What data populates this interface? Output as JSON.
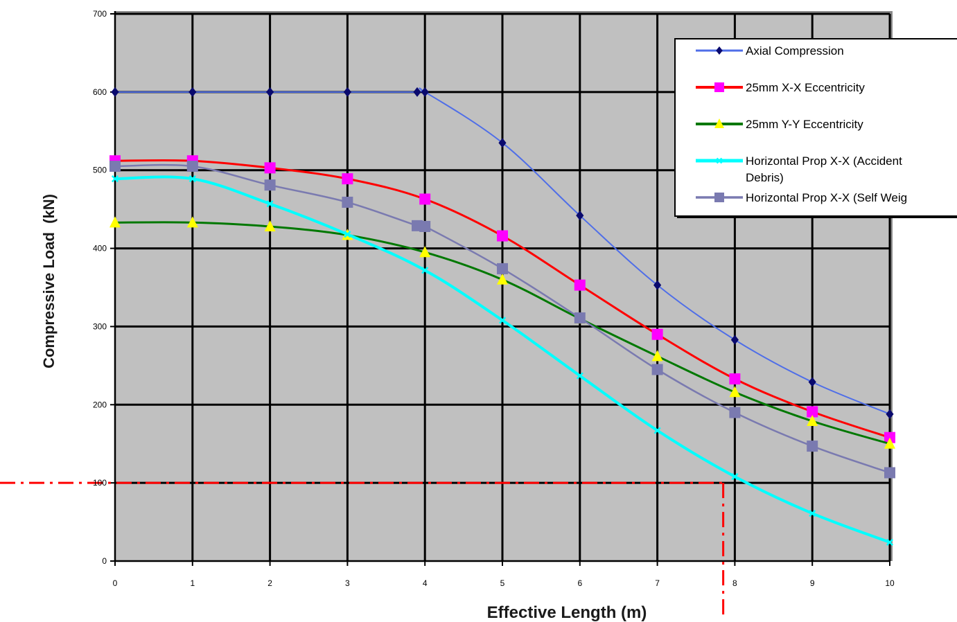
{
  "chart_data": {
    "type": "line",
    "title": "",
    "xlabel": "Effective Length (m)",
    "ylabel": "Compressive Load  (kN)",
    "xlim": [
      0,
      10
    ],
    "ylim": [
      0,
      700
    ],
    "x_ticks": [
      0,
      1,
      2,
      3,
      4,
      5,
      6,
      7,
      8,
      9,
      10
    ],
    "y_ticks": [
      0,
      100,
      200,
      300,
      400,
      500,
      600,
      700
    ],
    "grid": true,
    "plot_background": "#c0c0c0",
    "legend_position": "top-right",
    "series": [
      {
        "name": "Axial Compression",
        "color": "#4f6ee8",
        "marker": "diamond",
        "marker_color": "#0a0a6e",
        "x": [
          0,
          1,
          2,
          3,
          3.9,
          4,
          5,
          6,
          7,
          8,
          9,
          10
        ],
        "y": [
          600,
          600,
          600,
          600,
          600,
          600,
          535,
          442,
          353,
          283,
          229,
          188
        ]
      },
      {
        "name": "25mm X-X Eccentricity",
        "color": "#ff0000",
        "marker": "square",
        "marker_color": "#ff00ff",
        "x": [
          0,
          1,
          2,
          3,
          4,
          5,
          6,
          7,
          8,
          9,
          10
        ],
        "y": [
          512,
          512,
          503,
          489,
          463,
          416,
          353,
          290,
          233,
          191,
          158
        ]
      },
      {
        "name": "25mm Y-Y Eccentricity",
        "color": "#007800",
        "marker": "triangle",
        "marker_color": "#ffff00",
        "x": [
          0,
          1,
          2,
          3,
          4,
          5,
          6,
          7,
          8,
          9,
          10
        ],
        "y": [
          433,
          433,
          428,
          417,
          395,
          360,
          310,
          262,
          216,
          179,
          150
        ]
      },
      {
        "name": "Horizontal Prop X-X (Accidental Debris)",
        "color": "#00ffff",
        "marker": "x",
        "marker_color": "#00ffff",
        "x": [
          0,
          1,
          2,
          3,
          4,
          5,
          6,
          7,
          8,
          9,
          10
        ],
        "y": [
          489,
          489,
          457,
          418,
          372,
          308,
          237,
          167,
          108,
          61,
          24
        ]
      },
      {
        "name": "Horizontal Prop X-X (Self Weight)",
        "color": "#7a7ab0",
        "marker": "square",
        "marker_color": "#7a7ab0",
        "x": [
          0,
          1,
          2,
          3,
          3.9,
          4,
          5,
          6,
          7,
          8,
          9,
          10
        ],
        "y": [
          505,
          505,
          481,
          459,
          429,
          428,
          374,
          311,
          245,
          190,
          147,
          113
        ]
      }
    ],
    "legend_entries": [
      {
        "lines": [
          "Axial Compression"
        ]
      },
      {
        "lines": [
          "25mm X-X Eccentricity"
        ]
      },
      {
        "lines": [
          "25mm Y-Y Eccentricity"
        ]
      },
      {
        "lines": [
          "Horizontal Prop X-X (Accident",
          "Debris)"
        ]
      },
      {
        "lines": [
          "Horizontal Prop X-X (Self Weig"
        ]
      }
    ],
    "annotations": [
      {
        "type": "dash-dot-line",
        "orientation": "horizontal",
        "y": 100,
        "color": "#ff0000"
      },
      {
        "type": "dash-dot-line",
        "orientation": "vertical",
        "x": 7.85,
        "color": "#ff0000"
      }
    ]
  }
}
